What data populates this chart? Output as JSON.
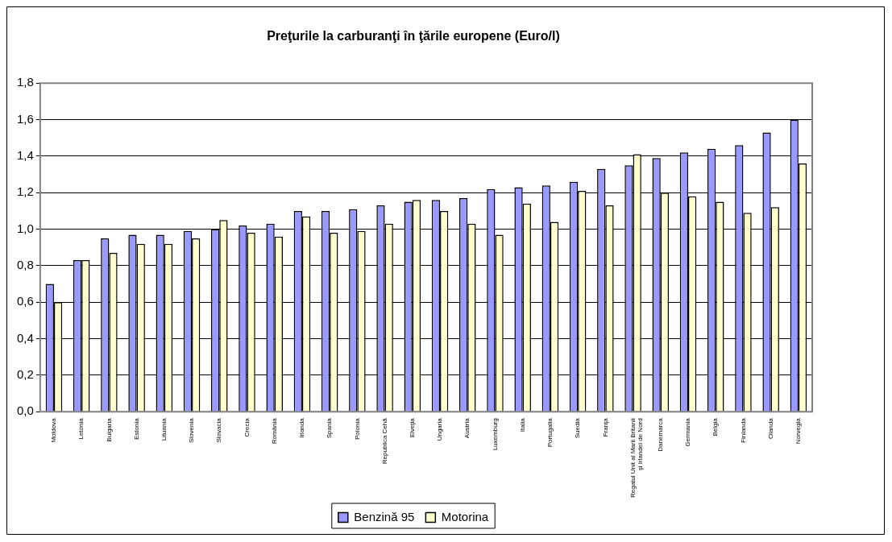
{
  "chart_data": {
    "type": "bar",
    "title": "Preţurile la carburanţi în ţările europene (Euro/l)",
    "categories": [
      "Moldova",
      "Letonia",
      "Bulgaria",
      "Estonia",
      "Lituania",
      "Slovenia",
      "Slovacia",
      "Crecia",
      "România",
      "Irlanda",
      "Spania",
      "Polonia",
      "Republica Cehă",
      "Elveţia",
      "Ungaria",
      "Austria",
      "Luxemburg",
      "Italia",
      "Portugalia",
      "Suedia",
      "Franţa",
      "Regatul Unit al Marii Britanii şi Irlandei de Nord",
      "Danemarca",
      "Germania",
      "Belgia",
      "Finlanda",
      "Olanda",
      "Norvegia"
    ],
    "series": [
      {
        "name": "Benzină 95",
        "color": "#9999ff",
        "values": [
          0.7,
          0.83,
          0.95,
          0.97,
          0.97,
          0.99,
          1.0,
          1.02,
          1.03,
          1.1,
          1.1,
          1.11,
          1.13,
          1.15,
          1.16,
          1.17,
          1.22,
          1.23,
          1.24,
          1.26,
          1.33,
          1.35,
          1.39,
          1.42,
          1.44,
          1.46,
          1.53,
          1.6
        ]
      },
      {
        "name": "Motorina",
        "color": "#ffffcc",
        "values": [
          0.6,
          0.83,
          0.87,
          0.92,
          0.92,
          0.95,
          1.05,
          0.98,
          0.96,
          1.07,
          0.98,
          0.99,
          1.03,
          1.16,
          1.1,
          1.03,
          0.97,
          1.14,
          1.04,
          1.21,
          1.13,
          1.41,
          1.2,
          1.18,
          1.15,
          1.09,
          1.12,
          1.36
        ]
      }
    ],
    "ylim": [
      0,
      1.8
    ],
    "yticks": [
      {
        "value": 0,
        "label": "0,0"
      },
      {
        "value": 0.2,
        "label": "0,2"
      },
      {
        "value": 0.4,
        "label": "0,4"
      },
      {
        "value": 0.6,
        "label": "0,6"
      },
      {
        "value": 0.8,
        "label": "0,8"
      },
      {
        "value": 1.0,
        "label": "1,0"
      },
      {
        "value": 1.2,
        "label": "1,2"
      },
      {
        "value": 1.4,
        "label": "1,4"
      },
      {
        "value": 1.6,
        "label": "1,6"
      },
      {
        "value": 1.8,
        "label": "1,8"
      }
    ],
    "grid": "y",
    "legend": "bottom"
  }
}
